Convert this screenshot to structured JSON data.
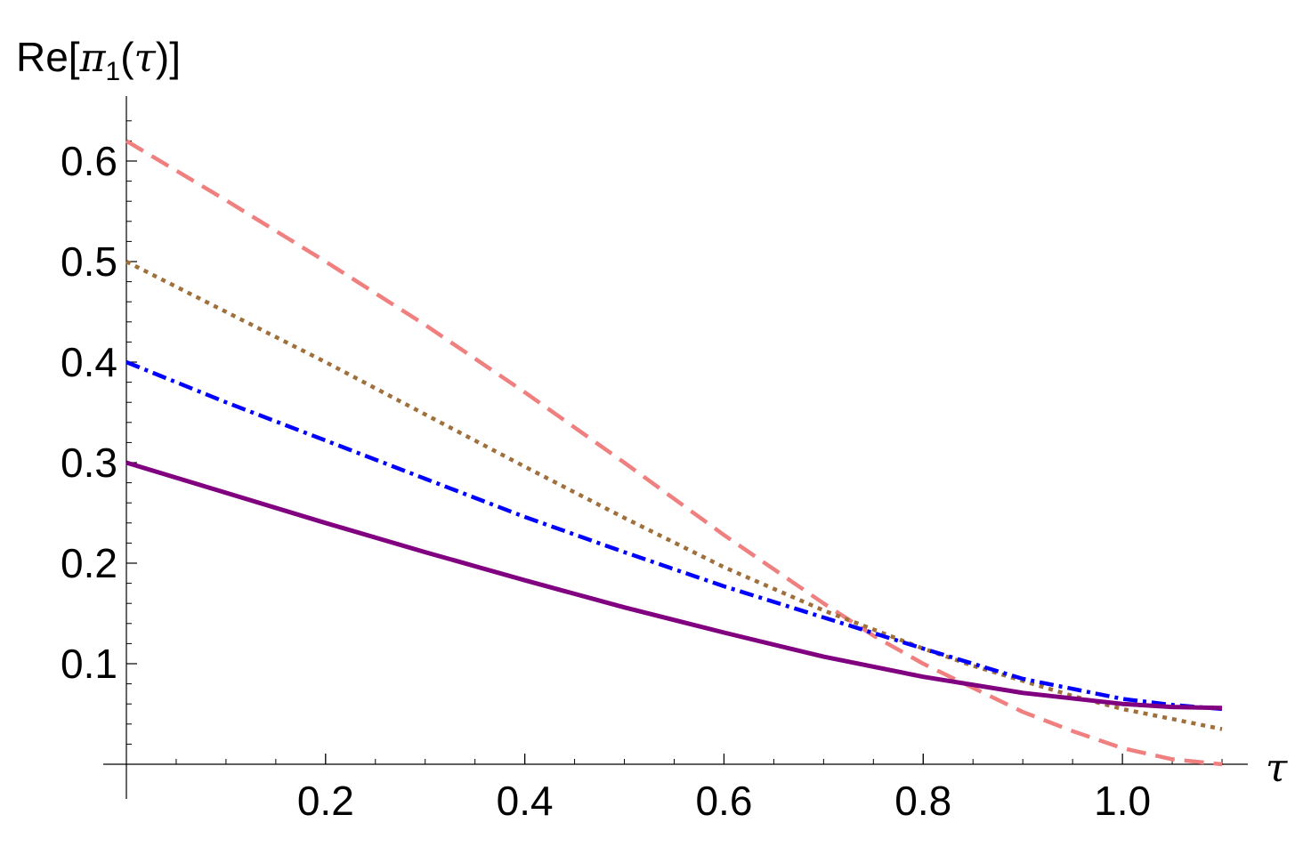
{
  "chart_data": {
    "type": "line",
    "title": "",
    "xlabel": "τ",
    "ylabel": "Re[π1(τ)]",
    "ylabel_parts": {
      "prefix": "Re[",
      "symbol": "π",
      "subscript": "1",
      "open_paren": "(",
      "argument": "τ",
      "close": ")]"
    },
    "xlim": [
      0,
      1.1
    ],
    "ylim": [
      0,
      0.63
    ],
    "x_ticks": [
      {
        "value": 0.2,
        "label": "0.2"
      },
      {
        "value": 0.4,
        "label": "0.4"
      },
      {
        "value": 0.6,
        "label": "0.6"
      },
      {
        "value": 0.8,
        "label": "0.8"
      },
      {
        "value": 1.0,
        "label": "1.0"
      }
    ],
    "y_ticks": [
      {
        "value": 0.1,
        "label": "0.1"
      },
      {
        "value": 0.2,
        "label": "0.2"
      },
      {
        "value": 0.3,
        "label": "0.3"
      },
      {
        "value": 0.4,
        "label": "0.4"
      },
      {
        "value": 0.5,
        "label": "0.5"
      },
      {
        "value": 0.6,
        "label": "0.6"
      }
    ],
    "grid": false,
    "series": [
      {
        "color": "#f08080",
        "style": "dashed",
        "x": [
          0,
          0.1,
          0.2,
          0.3,
          0.4,
          0.5,
          0.6,
          0.7,
          0.75,
          0.8,
          0.85,
          0.9,
          0.95,
          1.0,
          1.05,
          1.1
        ],
        "y": [
          0.62,
          0.561,
          0.5,
          0.437,
          0.37,
          0.3,
          0.228,
          0.16,
          0.128,
          0.1,
          0.076,
          0.052,
          0.033,
          0.016,
          0.005,
          0.0
        ]
      },
      {
        "color": "#a0703c",
        "style": "dotted",
        "x": [
          0,
          0.1,
          0.2,
          0.3,
          0.4,
          0.5,
          0.6,
          0.7,
          0.8,
          0.85,
          0.9,
          0.95,
          1.0,
          1.05,
          1.1
        ],
        "y": [
          0.5,
          0.45,
          0.4,
          0.348,
          0.296,
          0.245,
          0.196,
          0.153,
          0.115,
          0.098,
          0.083,
          0.068,
          0.055,
          0.045,
          0.035
        ]
      },
      {
        "color": "#0000ff",
        "style": "dash-dot",
        "x": [
          0,
          0.1,
          0.2,
          0.3,
          0.4,
          0.5,
          0.6,
          0.7,
          0.8,
          0.9,
          1.0,
          1.05,
          1.1
        ],
        "y": [
          0.4,
          0.36,
          0.322,
          0.284,
          0.246,
          0.211,
          0.177,
          0.146,
          0.115,
          0.085,
          0.065,
          0.059,
          0.055
        ]
      },
      {
        "color": "#800080",
        "style": "solid",
        "x": [
          0,
          0.1,
          0.2,
          0.3,
          0.4,
          0.5,
          0.6,
          0.7,
          0.8,
          0.9,
          1.0,
          1.05,
          1.1
        ],
        "y": [
          0.3,
          0.27,
          0.24,
          0.211,
          0.183,
          0.156,
          0.131,
          0.107,
          0.087,
          0.071,
          0.06,
          0.057,
          0.056
        ]
      }
    ]
  }
}
